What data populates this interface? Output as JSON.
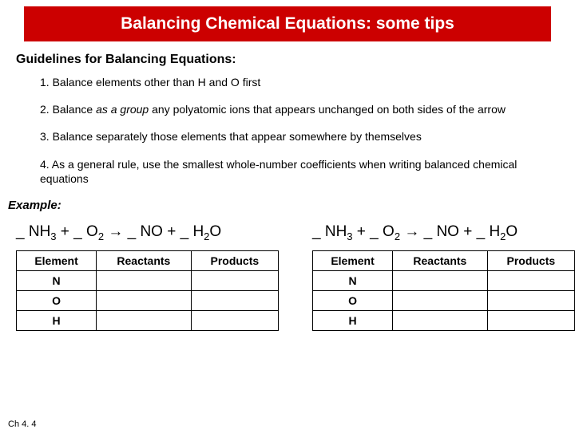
{
  "title": "Balancing Chemical Equations: some tips",
  "subtitle": "Guidelines for Balancing Equations:",
  "guidelines": {
    "g1": "1. Balance elements other than H and O first",
    "g2_pre": "2. Balance ",
    "g2_em": "as a group",
    "g2_post": " any polyatomic ions that appears unchanged on both sides of the arrow",
    "g3": "3. Balance separately those elements that appear somewhere by themselves",
    "g4": "4. As a general rule, use the smallest whole-number coefficients when writing balanced chemical equations"
  },
  "example_label": "Example:",
  "equation": {
    "p1": "_ NH",
    "s1": "3",
    "p2": " + _ O",
    "s2": "2",
    "p3": " → _ NO + _ H",
    "s3": "2",
    "p4": "O"
  },
  "table": {
    "headers": {
      "element": "Element",
      "reactants": "Reactants",
      "products": "Products"
    },
    "rows": [
      "N",
      "O",
      "H"
    ]
  },
  "footer": "Ch 4. 4",
  "colors": {
    "title_bg": "#cc0000",
    "title_fg": "#ffffff",
    "page_bg": "#ffffff",
    "border": "#000000",
    "text": "#000000"
  }
}
